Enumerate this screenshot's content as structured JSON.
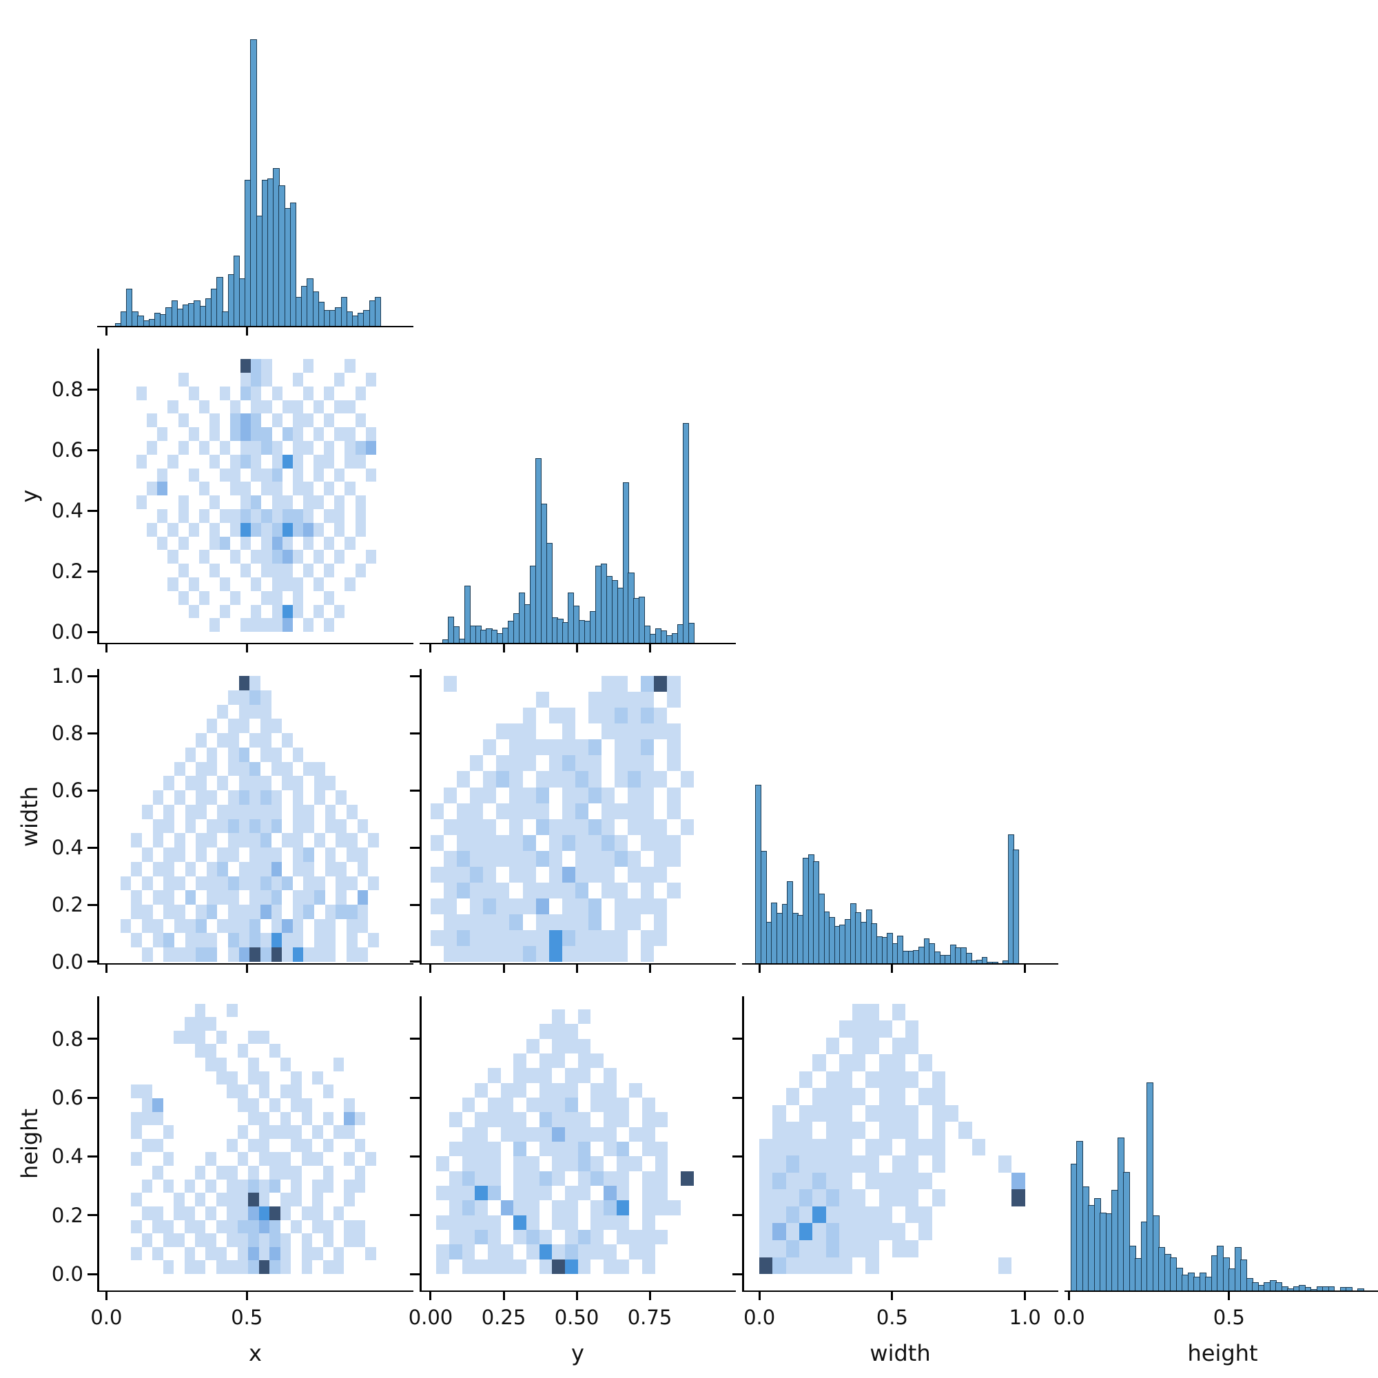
{
  "figure_title": "",
  "chart_data": {
    "type": "heatmap",
    "subtype": "corner-pairplot (histograms on diagonal, 2D histograms off-diagonal)",
    "variables": [
      "x",
      "y",
      "width",
      "height"
    ],
    "corner": true,
    "legend_position": "none",
    "grid": "off",
    "colors": {
      "bar_fill": "#5b9ecd",
      "bar_edge": "#1b3a52",
      "heat_levels": [
        "transparent",
        "#c7dbf3",
        "#abcbef",
        "#8ab5e8",
        "#4795dd",
        "#3a5272"
      ]
    },
    "col_axes": [
      {
        "label": "x",
        "range": [
          -0.028,
          1.088
        ],
        "ticks": [
          {
            "v": 0.0,
            "t": "0.0"
          },
          {
            "v": 0.5,
            "t": "0.5"
          }
        ]
      },
      {
        "label": "y",
        "range": [
          -0.033,
          1.04
        ],
        "ticks": [
          {
            "v": 0.0,
            "t": "0.00"
          },
          {
            "v": 0.25,
            "t": "0.25"
          },
          {
            "v": 0.5,
            "t": "0.50"
          },
          {
            "v": 0.75,
            "t": "0.75"
          }
        ]
      },
      {
        "label": "width",
        "range": [
          -0.06,
          1.12
        ],
        "ticks": [
          {
            "v": 0.0,
            "t": "0.0"
          },
          {
            "v": 0.5,
            "t": "0.5"
          },
          {
            "v": 1.0,
            "t": "1.0"
          }
        ]
      },
      {
        "label": "height",
        "range": [
          -0.01,
          0.97
        ],
        "ticks": [
          {
            "v": 0.0,
            "t": "0.0"
          },
          {
            "v": 0.5,
            "t": "0.5"
          }
        ]
      }
    ],
    "row_axes": {
      "1": {
        "label": "y",
        "range": [
          -0.036,
          0.93
        ],
        "ticks": [
          {
            "v": 0.0,
            "t": "0.0"
          },
          {
            "v": 0.2,
            "t": "0.2"
          },
          {
            "v": 0.4,
            "t": "0.4"
          },
          {
            "v": 0.6,
            "t": "0.6"
          },
          {
            "v": 0.8,
            "t": "0.8"
          }
        ]
      },
      "2": {
        "label": "width",
        "range": [
          -0.005,
          1.02
        ],
        "ticks": [
          {
            "v": 0.0,
            "t": "0.0"
          },
          {
            "v": 0.2,
            "t": "0.2"
          },
          {
            "v": 0.4,
            "t": "0.4"
          },
          {
            "v": 0.6,
            "t": "0.6"
          },
          {
            "v": 0.8,
            "t": "0.8"
          },
          {
            "v": 1.0,
            "t": "1.0"
          }
        ]
      },
      "3": {
        "label": "height",
        "range": [
          -0.056,
          0.94
        ],
        "ticks": [
          {
            "v": 0.0,
            "t": "0.0"
          },
          {
            "v": 0.2,
            "t": "0.2"
          },
          {
            "v": 0.4,
            "t": "0.4"
          },
          {
            "v": 0.6,
            "t": "0.6"
          },
          {
            "v": 0.8,
            "t": "0.8"
          }
        ]
      }
    },
    "histograms": {
      "x": {
        "start": 0.03,
        "end": 0.975,
        "max_frac": 0.98,
        "values": [
          0.01,
          0.05,
          0.13,
          0.05,
          0.035,
          0.02,
          0.025,
          0.045,
          0.04,
          0.065,
          0.09,
          0.06,
          0.075,
          0.08,
          0.09,
          0.07,
          0.095,
          0.13,
          0.17,
          0.05,
          0.18,
          0.245,
          0.165,
          0.51,
          1.0,
          0.385,
          0.51,
          0.515,
          0.55,
          0.49,
          0.41,
          0.43,
          0.1,
          0.14,
          0.165,
          0.12,
          0.085,
          0.055,
          0.055,
          0.065,
          0.1,
          0.05,
          0.035,
          0.045,
          0.055,
          0.09,
          0.1
        ]
      },
      "y": {
        "start": 0.04,
        "end": 0.9,
        "max_frac": 0.75,
        "values": [
          0.015,
          0.12,
          0.075,
          0.02,
          0.26,
          0.08,
          0.08,
          0.06,
          0.065,
          0.06,
          0.045,
          0.07,
          0.1,
          0.135,
          0.23,
          0.175,
          0.35,
          0.84,
          0.635,
          0.455,
          0.115,
          0.11,
          0.095,
          0.23,
          0.17,
          0.105,
          0.1,
          0.145,
          0.35,
          0.36,
          0.305,
          0.285,
          0.25,
          0.73,
          0.32,
          0.205,
          0.21,
          0.08,
          0.04,
          0.065,
          0.055,
          0.035,
          0.045,
          0.085,
          1.0,
          0.09
        ]
      },
      "width": {
        "start": -0.015,
        "end": 0.975,
        "max_frac": 0.61,
        "values": [
          1.0,
          0.63,
          0.23,
          0.34,
          0.28,
          0.33,
          0.46,
          0.28,
          0.27,
          0.59,
          0.61,
          0.57,
          0.39,
          0.29,
          0.26,
          0.21,
          0.215,
          0.245,
          0.335,
          0.287,
          0.23,
          0.3,
          0.225,
          0.15,
          0.148,
          0.17,
          0.11,
          0.155,
          0.071,
          0.071,
          0.073,
          0.093,
          0.138,
          0.11,
          0.065,
          0.045,
          0.045,
          0.106,
          0.087,
          0.087,
          0.058,
          0.017,
          0.019,
          0.035,
          0.006,
          0.004,
          0.0,
          0.017,
          0.72,
          0.635
        ]
      },
      "height": {
        "start": 0.005,
        "end": 0.92,
        "max_frac": 0.71,
        "values": [
          0.61,
          0.72,
          0.5,
          0.41,
          0.445,
          0.375,
          0.37,
          0.485,
          0.735,
          0.57,
          0.215,
          0.155,
          0.33,
          1.0,
          0.36,
          0.21,
          0.175,
          0.16,
          0.11,
          0.075,
          0.085,
          0.065,
          0.085,
          0.065,
          0.17,
          0.215,
          0.16,
          0.105,
          0.21,
          0.15,
          0.06,
          0.04,
          0.025,
          0.04,
          0.05,
          0.04,
          0.02,
          0.01,
          0.02,
          0.025,
          0.015,
          0.005,
          0.02,
          0.02,
          0.02,
          0.0,
          0.015,
          0.015,
          0.0,
          0.01
        ]
      }
    },
    "heatmaps": {
      "y_vs_x": {
        "x_var": "x",
        "y_var": "y",
        "x_extent": [
          0.07,
          0.96
        ],
        "y_extent": [
          0.0,
          0.9
        ],
        "cols": 24,
        "rows": 20,
        "cells": [
          "000000000005210001000100",
          "000001000001210010001001",
          "010000100102101001010010",
          "000010010010110110101100",
          "001001001023201011010010",
          "000100101023220210101101",
          "001001010101121011010123",
          "010010001012101410110110",
          "000100100110112010101001",
          "001300010011011011010100",
          "010001001001201101101010",
          "000101010112121221011010",
          "001010101014212423101010",
          "000101001201013101010100",
          "000010010010112310101001",
          "000001001001011101010010",
          "000010100100101110100100",
          "000001010010011010010000",
          "000000100100101410101000",
          "000000001001111301010000"
        ]
      },
      "width_vs_x": {
        "x_var": "x",
        "y_var": "width",
        "x_extent": [
          0.05,
          0.97
        ],
        "y_extent": [
          0.0,
          1.0
        ],
        "cols": 24,
        "rows": 20,
        "cells": [
          "000000000005100000000000",
          "000000000011210000000000",
          "000000000101110000000000",
          "000000001011011000000000",
          "000000010110110100000000",
          "000000101012011010000000",
          "000001011011201101100000",
          "000010110101110110110000",
          "000101011012121010101000",
          "001010110111111011010100",
          "000110101121212011011010",
          "010101011011120110101101",
          "001011010110111012010110",
          "010110101201113011011010",
          "101011011121121201101101",
          "010110201110112011201030",
          "011011012011131012012210",
          "101101120111201310110110",
          "010120111021214110110101",
          "001011122013525141110110"
        ]
      },
      "width_vs_y": {
        "x_var": "y",
        "y_var": "width",
        "x_extent": [
          0.0,
          0.9
        ],
        "y_extent": [
          0.0,
          1.0
        ],
        "cols": 20,
        "rows": 18,
        "cells": [
          "01000000000001102510",
          "00000000100011111010",
          "00000001011011212100",
          "00000111001001111110",
          "00001011111120112010",
          "00010111012110111010",
          "00101210111210121101",
          "01011011201121011010",
          "10110111101201111010",
          "01111010211121011101",
          "10111112012112101110",
          "01211111210111210110",
          "11121011013111011100",
          "01211101111201101010",
          "11012111301120111100",
          "01111120111120110100",
          "11211111142111101100",
          "01111112141111101000"
        ]
      },
      "height_vs_x": {
        "x_var": "x",
        "y_var": "height",
        "x_extent": [
          0.05,
          0.96
        ],
        "y_extent": [
          0.0,
          0.92
        ],
        "cols": 24,
        "rows": 20,
        "cells": [
          "000000010010000000000000",
          "000000111000000000000000",
          "000001110100110000000000",
          "000000011001001000000000",
          "000000001100100100001000",
          "000000000110110010100000",
          "011000000011010110010000",
          "001300000001101011000100",
          "011100000000110101010310",
          "010010000001011110101100",
          "001100000010110011010010",
          "010010001001011101100101",
          "000100010110101110010010",
          "001010101011212010110110",
          "010001010111510110100100",
          "001101101011345101101000",
          "010110110112232010110110",
          "001011011011212101010110",
          "010100101101313101101001",
          "000010110111252101011000"
        ]
      },
      "height_vs_y": {
        "x_var": "y",
        "y_var": "height",
        "x_extent": [
          0.02,
          0.9
        ],
        "y_extent": [
          0.0,
          0.9
        ],
        "cols": 20,
        "rows": 18,
        "cells": [
          "00000000010100000000",
          "00000000111000000000",
          "00000001011100000000",
          "00000010110110000000",
          "00001011101101000000",
          "00010110111011010000",
          "00101101112011101000",
          "01011110211101101100",
          "00110111131111011000",
          "01111020111201201100",
          "10111011011210110100",
          "01211011210121101105",
          "11142011101103101100",
          "01210311011012401110",
          "11111041011011101000",
          "01121012101210111100",
          "12101101412111011000",
          "10111110154101101000"
        ]
      },
      "height_vs_width": {
        "x_var": "width",
        "y_var": "height",
        "x_extent": [
          0.0,
          1.0
        ],
        "y_extent": [
          0.0,
          0.92
        ],
        "cols": 20,
        "rows": 16,
        "cells": [
          "00000001101000000000",
          "00000011110100000000",
          "00000101101100000000",
          "00001011011010000000",
          "00010110111101000000",
          "00101111011011000000",
          "01011110111101100000",
          "01110111011101010000",
          "11111110110111001000",
          "11211111101101000010",
          "12112110111110000003",
          "11121211011101000005",
          "11214111110110000000",
          "13141211111010000000",
          "11211211101100000000",
          "52111110100000000010"
        ]
      },
      "legend": "cell values 0-5 map to colors.heat_levels (count density)"
    },
    "panels": [
      {
        "name": "x-hist",
        "row": 0,
        "col": 0,
        "kind": "hist",
        "hist": "x"
      },
      {
        "name": "y-vs-x",
        "row": 1,
        "col": 0,
        "kind": "heat",
        "heat": "y_vs_x"
      },
      {
        "name": "y-hist",
        "row": 1,
        "col": 1,
        "kind": "hist",
        "hist": "y"
      },
      {
        "name": "width-vs-x",
        "row": 2,
        "col": 0,
        "kind": "heat",
        "heat": "width_vs_x"
      },
      {
        "name": "width-vs-y",
        "row": 2,
        "col": 1,
        "kind": "heat",
        "heat": "width_vs_y"
      },
      {
        "name": "width-hist",
        "row": 2,
        "col": 2,
        "kind": "hist",
        "hist": "width"
      },
      {
        "name": "height-vs-x",
        "row": 3,
        "col": 0,
        "kind": "heat",
        "heat": "height_vs_x"
      },
      {
        "name": "height-vs-y",
        "row": 3,
        "col": 1,
        "kind": "heat",
        "heat": "height_vs_y"
      },
      {
        "name": "height-vs-width",
        "row": 3,
        "col": 2,
        "kind": "heat",
        "heat": "height_vs_width"
      },
      {
        "name": "height-hist",
        "row": 3,
        "col": 3,
        "kind": "hist",
        "hist": "height"
      }
    ]
  }
}
